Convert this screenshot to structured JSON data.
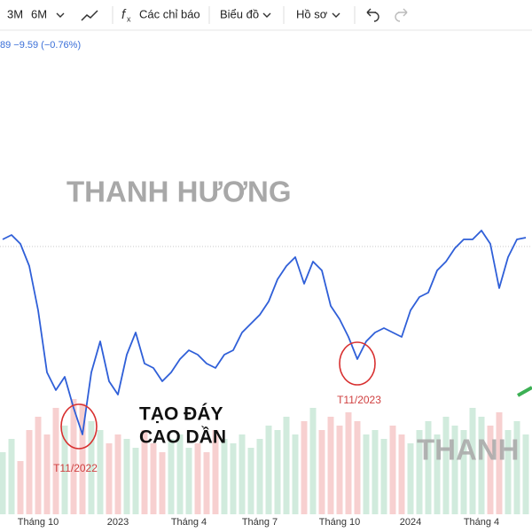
{
  "toolbar": {
    "ranges": [
      "3M",
      "6M"
    ],
    "indicators": "Các chỉ báo",
    "chart": "Biểu đồ",
    "profile": "Hồ sơ"
  },
  "header": {
    "change": "89  −9.59 (−0.76%)"
  },
  "chart_data": {
    "type": "line",
    "watermarks": [
      "THANH HƯƠNG",
      "THANH"
    ],
    "annotations": [
      "TẠO ĐÁY",
      "CAO DẦN",
      "T11/2022",
      "T11/2023"
    ],
    "categories": [
      null,
      null,
      null,
      null,
      "Tháng 10",
      null,
      null,
      null,
      null,
      null,
      null,
      null,
      null,
      "2023",
      null,
      null,
      null,
      null,
      null,
      null,
      null,
      "Tháng 4",
      null,
      null,
      null,
      null,
      null,
      null,
      null,
      "Tháng 7",
      null,
      null,
      null,
      null,
      null,
      null,
      null,
      null,
      "Tháng 10",
      null,
      null,
      null,
      null,
      null,
      null,
      null,
      "2024",
      null,
      null,
      null,
      null,
      null,
      null,
      null,
      "Tháng 4",
      null,
      null,
      null,
      null,
      null
    ],
    "values": [
      310,
      315,
      305,
      280,
      230,
      160,
      140,
      155,
      120,
      90,
      160,
      195,
      150,
      135,
      180,
      205,
      170,
      165,
      150,
      160,
      175,
      185,
      180,
      170,
      165,
      180,
      185,
      205,
      215,
      225,
      240,
      265,
      280,
      290,
      260,
      285,
      275,
      235,
      220,
      200,
      175,
      195,
      205,
      210,
      205,
      200,
      230,
      245,
      250,
      275,
      285,
      300,
      310,
      310,
      320,
      305,
      255,
      290,
      310,
      312
    ],
    "color": "#2f5fd8",
    "ylim": [
      0,
      540
    ],
    "volumes": [
      70,
      85,
      60,
      95,
      110,
      90,
      120,
      100,
      130,
      125,
      105,
      95,
      80,
      90,
      85,
      75,
      95,
      80,
      70,
      85,
      90,
      75,
      80,
      70,
      95,
      85,
      80,
      90,
      75,
      85,
      100,
      95,
      110,
      90,
      105,
      120,
      95,
      110,
      100,
      115,
      105,
      90,
      95,
      85,
      100,
      90,
      80,
      95,
      105,
      90,
      110,
      100,
      95,
      120,
      110,
      100,
      115,
      95,
      105,
      90
    ],
    "volume_colors": [
      "#f5c4c4",
      "#c6e6d4"
    ],
    "y2lim": [
      0,
      540
    ]
  }
}
